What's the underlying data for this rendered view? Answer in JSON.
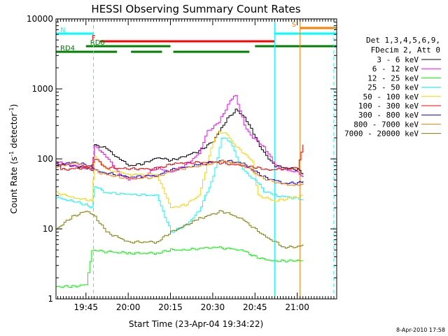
{
  "chart_data": {
    "type": "line",
    "title": "HESSI Observing Summary Count Rates",
    "xlabel": "Start Time (23-Apr-04 19:34:22)",
    "ylabel_main": "Count Rate (s",
    "ylabel_sup1": "-1",
    "ylabel_mid": " detector",
    "ylabel_sup2": "-1",
    "ylabel_end": ")",
    "y_scale": "log",
    "ylim": [
      1,
      10000
    ],
    "xlim": [
      "19:34:22",
      "21:14"
    ],
    "y_ticks": [
      "1",
      "10",
      "100",
      "1000",
      "10000"
    ],
    "x_ticks": [
      "19:45",
      "20:00",
      "20:15",
      "20:30",
      "20:45",
      "21:00"
    ],
    "date_stamp": "8-Apr-2010 17:58",
    "legend": {
      "header1": "Det 1,3,4,5,6,9,",
      "header2": "FDecim 2, Att 0",
      "position": "right"
    },
    "flag_bars": [
      {
        "label": "N",
        "color": "#00ffff",
        "start": "19:34:22",
        "end": "19:47:40"
      },
      {
        "label": "N",
        "color": "#00ffff",
        "start": "20:52",
        "end": "21:14"
      },
      {
        "label": "F",
        "color": "#ff0000",
        "start": "19:50",
        "end": "20:52"
      },
      {
        "label": "S",
        "color": "#ff8000",
        "start": "21:01",
        "end": "21:14"
      },
      {
        "label": "RD0",
        "color": "#008000",
        "start": "19:45",
        "end": "20:15"
      },
      {
        "label": "RD0",
        "color": "#008000",
        "start": "20:45",
        "end": "21:14"
      },
      {
        "label": "RD4",
        "color": "#008000",
        "start": "19:34:22",
        "end": "19:56"
      },
      {
        "label": "RD4",
        "color": "#008000",
        "start": "20:01",
        "end": "20:12"
      },
      {
        "label": "RD4",
        "color": "#008000",
        "start": "20:16",
        "end": "20:43"
      }
    ],
    "vertical_lines": [
      {
        "time": "19:34:22",
        "color": "#00ffff",
        "style": "dashed"
      },
      {
        "time": "19:47:40",
        "color": "#00ffff",
        "style": "dashed"
      },
      {
        "time": "20:52",
        "color": "#00ffff",
        "style": "solid"
      },
      {
        "time": "21:01",
        "color": "#ff8000",
        "style": "solid"
      },
      {
        "time": "21:13",
        "color": "#00ffff",
        "style": "dashed"
      }
    ],
    "series": [
      {
        "name": "3 - 6 keV",
        "color": "#000000",
        "points": [
          [
            "19:34:22",
            85
          ],
          [
            "19:40",
            80
          ],
          [
            "19:45",
            75
          ],
          [
            "19:47",
            70
          ],
          [
            "19:48",
            160
          ],
          [
            "19:52",
            140
          ],
          [
            "19:56",
            105
          ],
          [
            "20:00",
            80
          ],
          [
            "20:05",
            85
          ],
          [
            "20:10",
            105
          ],
          [
            "20:15",
            95
          ],
          [
            "20:20",
            110
          ],
          [
            "20:25",
            130
          ],
          [
            "20:30",
            180
          ],
          [
            "20:35",
            380
          ],
          [
            "20:38",
            500
          ],
          [
            "20:41",
            400
          ],
          [
            "20:45",
            200
          ],
          [
            "20:48",
            120
          ],
          [
            "20:52",
            80
          ],
          [
            "20:55",
            75
          ],
          [
            "21:00",
            70
          ],
          [
            "21:02",
            60
          ]
        ]
      },
      {
        "name": "6 - 12 keV",
        "color": "#ff00ff",
        "points": [
          [
            "19:34:22",
            90
          ],
          [
            "19:40",
            80
          ],
          [
            "19:45",
            75
          ],
          [
            "19:47",
            70
          ],
          [
            "19:48",
            150
          ],
          [
            "19:52",
            110
          ],
          [
            "19:56",
            65
          ],
          [
            "20:00",
            50
          ],
          [
            "20:05",
            55
          ],
          [
            "20:10",
            75
          ],
          [
            "20:15",
            65
          ],
          [
            "20:20",
            80
          ],
          [
            "20:25",
            120
          ],
          [
            "20:28",
            250
          ],
          [
            "20:32",
            330
          ],
          [
            "20:36",
            700
          ],
          [
            "20:38",
            800
          ],
          [
            "20:41",
            300
          ],
          [
            "20:44",
            200
          ],
          [
            "20:48",
            150
          ],
          [
            "20:52",
            80
          ],
          [
            "20:55",
            70
          ],
          [
            "21:00",
            65
          ],
          [
            "21:02",
            55
          ]
        ]
      },
      {
        "name": "12 - 25 keV",
        "color": "#00ff00",
        "points": [
          [
            "19:34:22",
            1.5
          ],
          [
            "19:40",
            1.5
          ],
          [
            "19:45",
            1.6
          ],
          [
            "19:47",
            5
          ],
          [
            "19:50",
            4.8
          ],
          [
            "20:00",
            4.5
          ],
          [
            "20:10",
            4.5
          ],
          [
            "20:15",
            5
          ],
          [
            "20:20",
            5
          ],
          [
            "20:30",
            5.5
          ],
          [
            "20:40",
            5
          ],
          [
            "20:45",
            4
          ],
          [
            "20:50",
            3.5
          ],
          [
            "20:55",
            3.5
          ],
          [
            "21:00",
            3.5
          ],
          [
            "21:02",
            3.5
          ]
        ]
      },
      {
        "name": "25 - 50 keV",
        "color": "#00ffff",
        "points": [
          [
            "19:34:22",
            28
          ],
          [
            "19:40",
            25
          ],
          [
            "19:45",
            22
          ],
          [
            "19:47",
            20
          ],
          [
            "19:48",
            40
          ],
          [
            "19:52",
            33
          ],
          [
            "20:00",
            31
          ],
          [
            "20:10",
            30
          ],
          [
            "20:15",
            9
          ],
          [
            "20:20",
            11
          ],
          [
            "20:25",
            18
          ],
          [
            "20:30",
            55
          ],
          [
            "20:33",
            200
          ],
          [
            "20:36",
            180
          ],
          [
            "20:39",
            90
          ],
          [
            "20:42",
            60
          ],
          [
            "20:45",
            50
          ],
          [
            "20:48",
            35
          ],
          [
            "20:52",
            30
          ],
          [
            "20:58",
            28
          ],
          [
            "21:02",
            26
          ]
        ]
      },
      {
        "name": "50 - 100 keV",
        "color": "#ffd000",
        "points": [
          [
            "19:34:22",
            33
          ],
          [
            "19:40",
            28
          ],
          [
            "19:45",
            26
          ],
          [
            "19:47",
            25
          ],
          [
            "19:48",
            110
          ],
          [
            "19:52",
            70
          ],
          [
            "19:56",
            65
          ],
          [
            "20:00",
            60
          ],
          [
            "20:10",
            60
          ],
          [
            "20:15",
            20
          ],
          [
            "20:20",
            22
          ],
          [
            "20:25",
            30
          ],
          [
            "20:30",
            180
          ],
          [
            "20:32",
            250
          ],
          [
            "20:35",
            220
          ],
          [
            "20:38",
            150
          ],
          [
            "20:41",
            120
          ],
          [
            "20:44",
            90
          ],
          [
            "20:46",
            30
          ],
          [
            "20:52",
            25
          ],
          [
            "20:58",
            28
          ],
          [
            "21:02",
            30
          ]
        ]
      },
      {
        "name": "100 - 300 keV",
        "color": "#ff0000",
        "points": [
          [
            "19:34:22",
            90
          ],
          [
            "19:36",
            70
          ],
          [
            "19:45",
            75
          ],
          [
            "19:47",
            80
          ],
          [
            "19:48",
            100
          ],
          [
            "19:52",
            75
          ],
          [
            "20:00",
            72
          ],
          [
            "20:10",
            72
          ],
          [
            "20:15",
            85
          ],
          [
            "20:20",
            88
          ],
          [
            "20:30",
            90
          ],
          [
            "20:40",
            80
          ],
          [
            "20:45",
            75
          ],
          [
            "20:50",
            70
          ],
          [
            "20:55",
            72
          ],
          [
            "21:00",
            75
          ],
          [
            "21:02",
            160
          ]
        ]
      },
      {
        "name": "300 - 800 keV",
        "color": "#0000ff",
        "points": [
          [
            "19:34:22",
            80
          ],
          [
            "19:40",
            90
          ],
          [
            "19:45",
            82
          ],
          [
            "19:50",
            65
          ],
          [
            "20:00",
            55
          ],
          [
            "20:10",
            58
          ],
          [
            "20:15",
            70
          ],
          [
            "20:25",
            82
          ],
          [
            "20:33",
            95
          ],
          [
            "20:40",
            88
          ],
          [
            "20:48",
            55
          ],
          [
            "20:55",
            45
          ],
          [
            "21:00",
            45
          ],
          [
            "21:02",
            48
          ]
        ]
      },
      {
        "name": "800 - 7000 keV",
        "color": "#ff8000",
        "points": [
          [
            "19:34:22",
            78
          ],
          [
            "19:40",
            88
          ],
          [
            "19:45",
            80
          ],
          [
            "19:50",
            62
          ],
          [
            "20:00",
            52
          ],
          [
            "20:10",
            55
          ],
          [
            "20:15",
            68
          ],
          [
            "20:25",
            80
          ],
          [
            "20:33",
            93
          ],
          [
            "20:40",
            85
          ],
          [
            "20:48",
            52
          ],
          [
            "20:55",
            43
          ],
          [
            "21:00",
            42
          ],
          [
            "21:02",
            45
          ]
        ]
      },
      {
        "name": "7000 - 20000 keV",
        "color": "#808000",
        "points": [
          [
            "19:34:22",
            10
          ],
          [
            "19:40",
            15
          ],
          [
            "19:45",
            18
          ],
          [
            "19:48",
            15
          ],
          [
            "19:52",
            9
          ],
          [
            "20:00",
            6.5
          ],
          [
            "20:10",
            6.5
          ],
          [
            "20:15",
            9
          ],
          [
            "20:25",
            14
          ],
          [
            "20:33",
            18
          ],
          [
            "20:40",
            14
          ],
          [
            "20:48",
            8
          ],
          [
            "20:55",
            5.5
          ],
          [
            "21:00",
            5.5
          ],
          [
            "21:02",
            6
          ]
        ]
      }
    ]
  }
}
